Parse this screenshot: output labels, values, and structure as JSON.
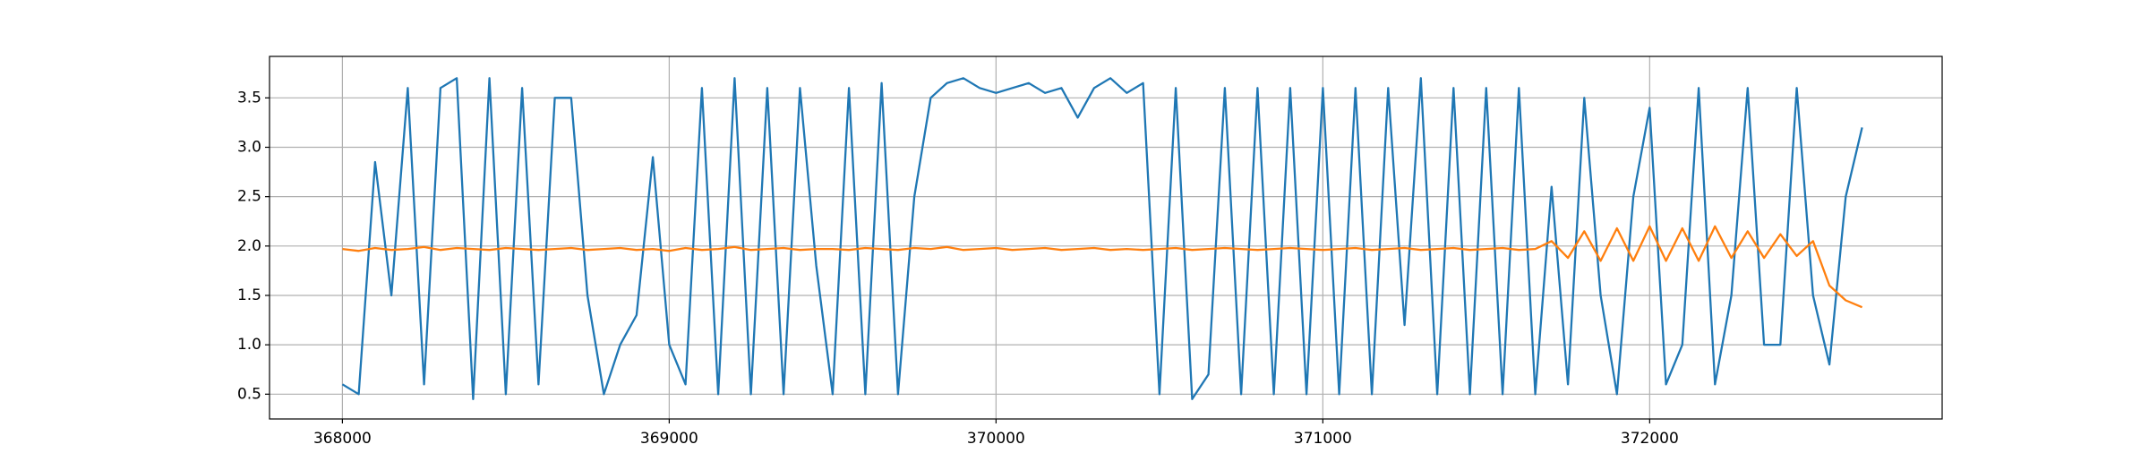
{
  "chart_data": {
    "type": "line",
    "x": [
      368000,
      368050,
      368100,
      368150,
      368200,
      368250,
      368300,
      368350,
      368400,
      368450,
      368500,
      368550,
      368600,
      368650,
      368700,
      368750,
      368800,
      368850,
      368900,
      368950,
      369000,
      369050,
      369100,
      369150,
      369200,
      369250,
      369300,
      369350,
      369400,
      369450,
      369500,
      369550,
      369600,
      369650,
      369700,
      369750,
      369800,
      369850,
      369900,
      369950,
      370000,
      370050,
      370100,
      370150,
      370200,
      370250,
      370300,
      370350,
      370400,
      370450,
      370500,
      370550,
      370600,
      370650,
      370700,
      370750,
      370800,
      370850,
      370900,
      370950,
      371000,
      371050,
      371100,
      371150,
      371200,
      371250,
      371300,
      371350,
      371400,
      371450,
      371500,
      371550,
      371600,
      371650,
      371700,
      371750,
      371800,
      371850,
      371900,
      371950,
      372000,
      372050,
      372100,
      372150,
      372200,
      372250,
      372300,
      372350,
      372400,
      372450,
      372500,
      372550,
      372600,
      372650
    ],
    "series": [
      {
        "color": "#1f77b4",
        "values": [
          0.6,
          0.5,
          2.85,
          1.5,
          3.6,
          0.6,
          3.6,
          3.7,
          0.45,
          3.7,
          0.5,
          3.6,
          0.6,
          3.5,
          3.5,
          1.5,
          0.5,
          1.0,
          1.3,
          2.9,
          1.0,
          0.6,
          3.6,
          0.5,
          3.7,
          0.5,
          3.6,
          0.5,
          3.6,
          1.8,
          0.5,
          3.6,
          0.5,
          3.65,
          0.5,
          2.5,
          3.5,
          3.65,
          3.7,
          3.6,
          3.55,
          3.6,
          3.65,
          3.55,
          3.6,
          3.3,
          3.6,
          3.7,
          3.55,
          3.65,
          0.5,
          3.6,
          0.45,
          0.7,
          3.6,
          0.5,
          3.6,
          0.5,
          3.6,
          0.5,
          3.6,
          0.5,
          3.6,
          0.5,
          3.6,
          1.2,
          3.7,
          0.5,
          3.6,
          0.5,
          3.6,
          0.5,
          3.6,
          0.5,
          2.6,
          0.6,
          3.5,
          1.5,
          0.5,
          2.5,
          3.4,
          0.6,
          1.0,
          3.6,
          0.6,
          1.5,
          3.6,
          1.0,
          1.0,
          3.6,
          1.5,
          0.8,
          2.5,
          3.2
        ]
      },
      {
        "color": "#ff7f0e",
        "values": [
          1.97,
          1.95,
          1.98,
          1.96,
          1.97,
          1.99,
          1.96,
          1.98,
          1.97,
          1.96,
          1.98,
          1.97,
          1.96,
          1.97,
          1.98,
          1.96,
          1.97,
          1.98,
          1.96,
          1.97,
          1.95,
          1.98,
          1.96,
          1.97,
          1.99,
          1.96,
          1.97,
          1.98,
          1.96,
          1.97,
          1.97,
          1.96,
          1.98,
          1.97,
          1.96,
          1.98,
          1.97,
          1.99,
          1.96,
          1.97,
          1.98,
          1.96,
          1.97,
          1.98,
          1.96,
          1.97,
          1.98,
          1.96,
          1.97,
          1.96,
          1.97,
          1.98,
          1.96,
          1.97,
          1.98,
          1.97,
          1.96,
          1.97,
          1.98,
          1.97,
          1.96,
          1.97,
          1.98,
          1.96,
          1.97,
          1.98,
          1.96,
          1.97,
          1.98,
          1.96,
          1.97,
          1.98,
          1.96,
          1.97,
          2.05,
          1.88,
          2.15,
          1.85,
          2.18,
          1.85,
          2.2,
          1.85,
          2.18,
          1.85,
          2.2,
          1.88,
          2.15,
          1.88,
          2.12,
          1.9,
          2.05,
          1.6,
          1.45,
          1.38
        ]
      }
    ],
    "xlim": [
      367777,
      372895
    ],
    "ylim": [
      0.249,
      3.92
    ],
    "xticks": [
      368000,
      369000,
      370000,
      371000,
      372000
    ],
    "yticks": [
      0.5,
      {
        "value": 1,
        "label": "1.0"
      },
      1.5,
      {
        "value": 2,
        "label": "2.0"
      },
      2.5,
      {
        "value": 3,
        "label": "3.0"
      },
      3.5
    ],
    "grid": true
  }
}
